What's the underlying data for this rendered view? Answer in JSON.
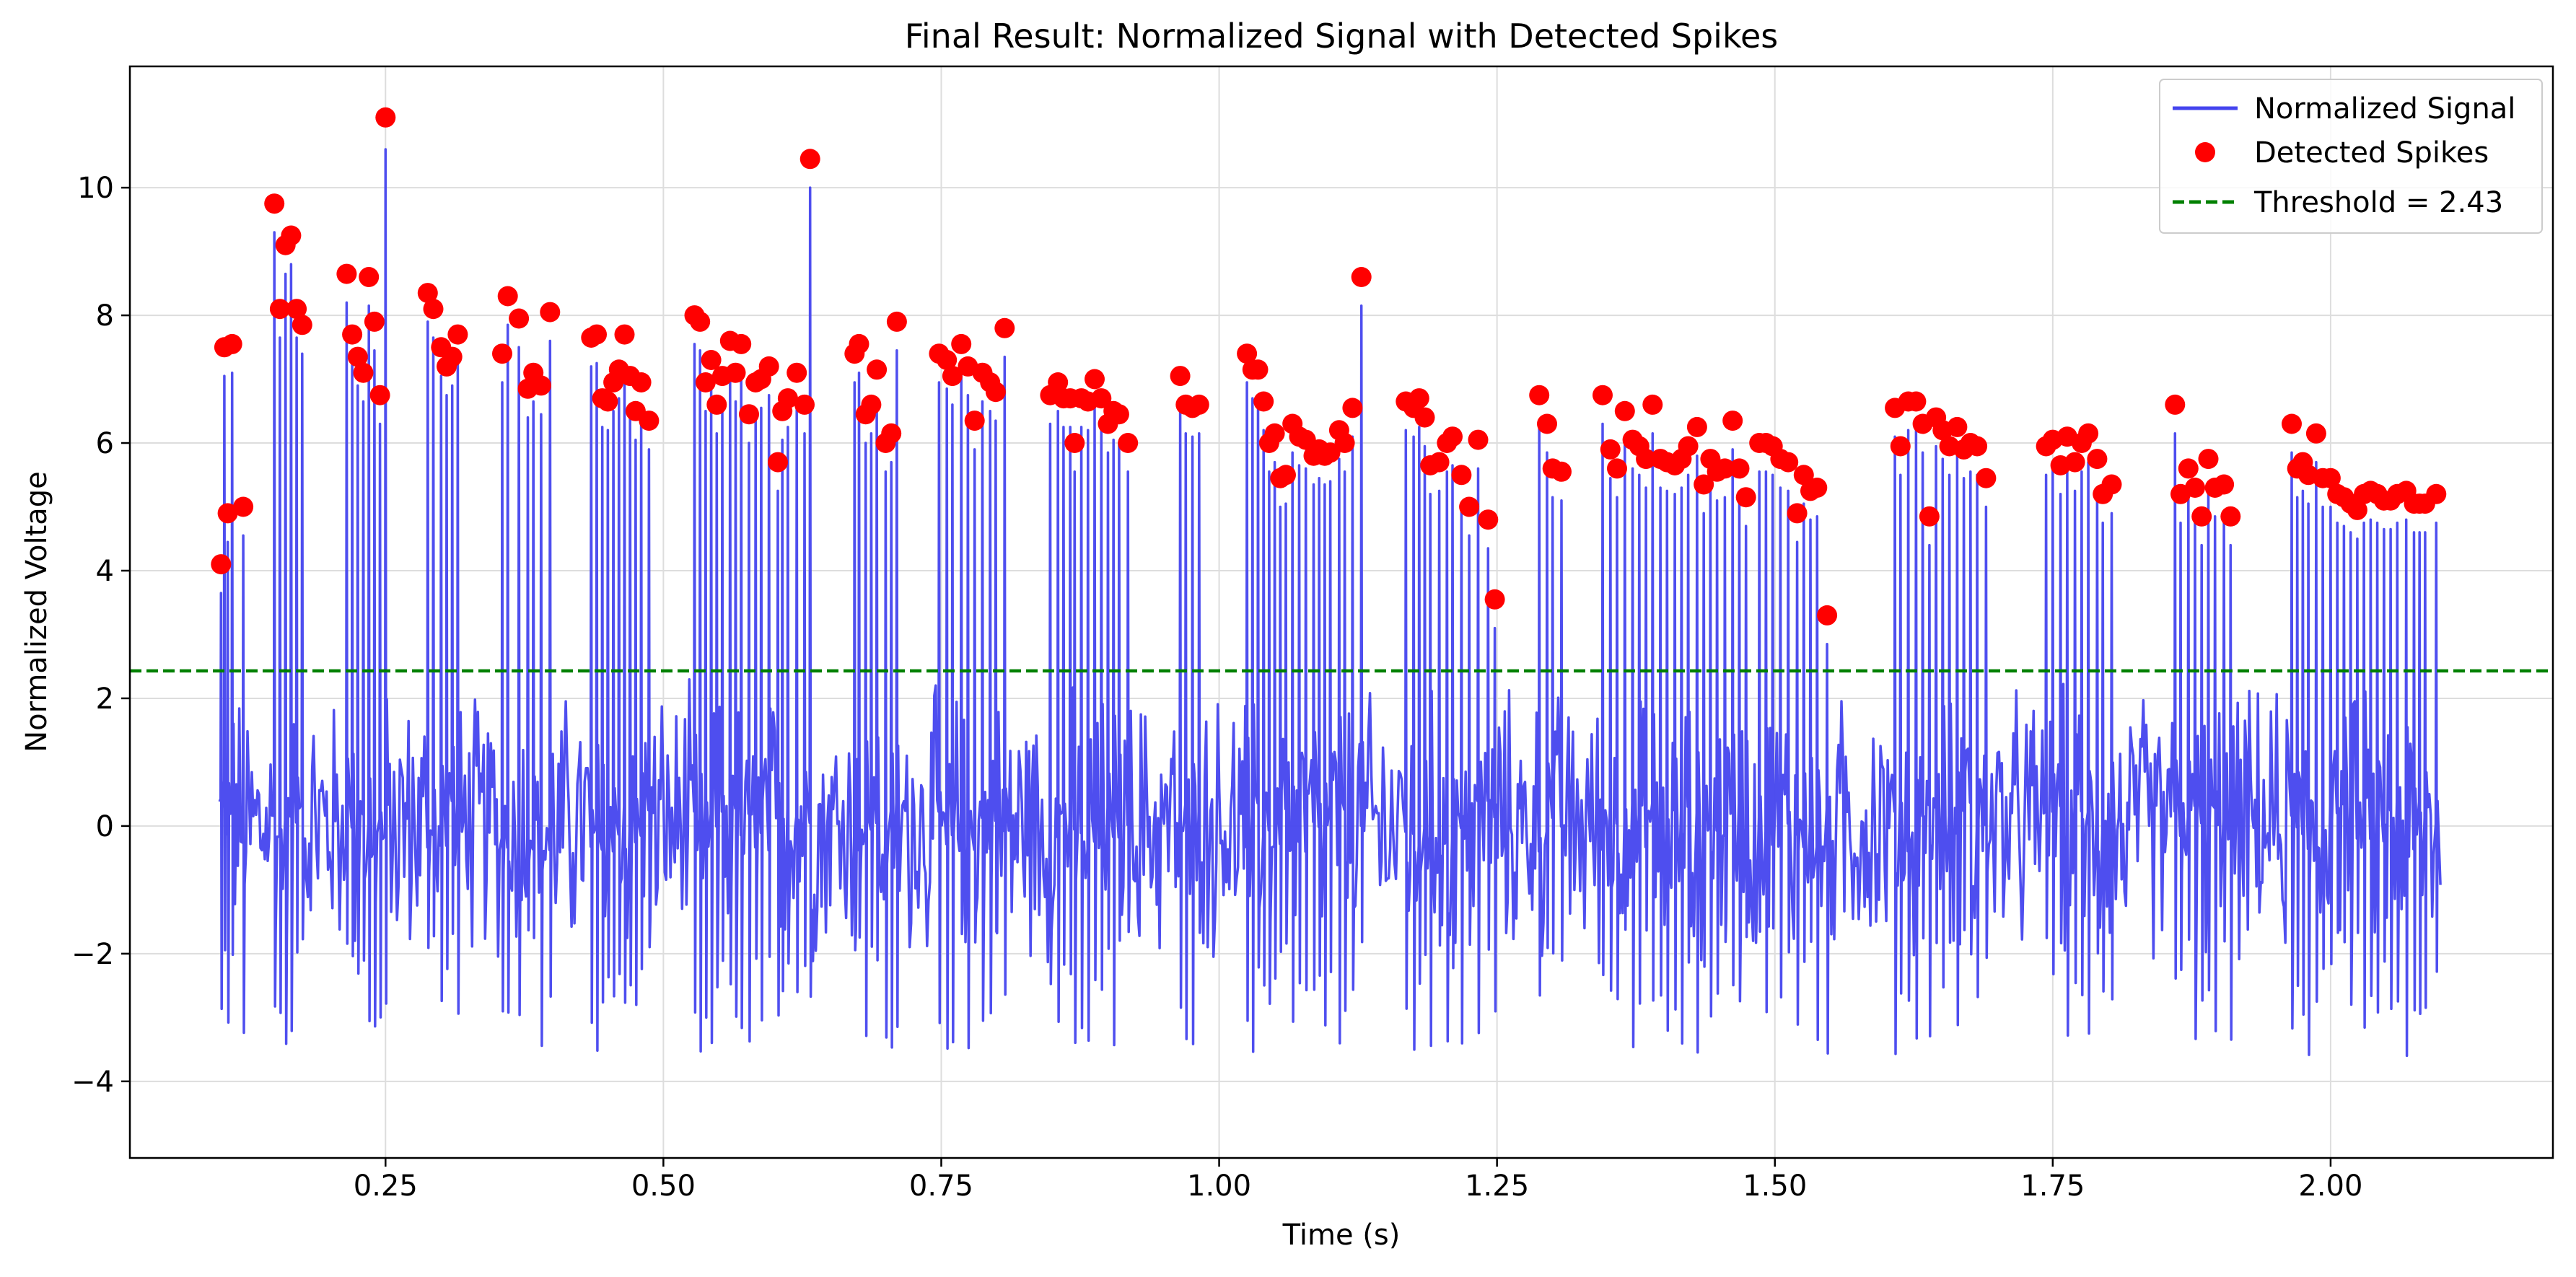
{
  "chart_data": {
    "type": "line",
    "title": "Final Result: Normalized Signal with Detected Spikes",
    "xlabel": "Time (s)",
    "ylabel": "Normalized Voltage",
    "xlim": [
      0.02,
      2.2
    ],
    "ylim": [
      -5.2,
      11.9
    ],
    "x_ticks": [
      0.25,
      0.5,
      0.75,
      1.0,
      1.25,
      1.5,
      1.75,
      2.0
    ],
    "x_tick_labels": [
      "0.25",
      "0.50",
      "0.75",
      "1.00",
      "1.25",
      "1.50",
      "1.75",
      "2.00"
    ],
    "y_ticks": [
      -4,
      -2,
      0,
      2,
      4,
      6,
      8,
      10
    ],
    "y_tick_labels": [
      "−4",
      "−2",
      "0",
      "2",
      "4",
      "6",
      "8",
      "10"
    ],
    "grid": true,
    "legend_position": "top-right",
    "colors": {
      "signal": "#4444ee",
      "spikes": "#ff0000",
      "threshold": "#008000"
    },
    "series": [
      {
        "name": "Normalized Signal",
        "kind": "line",
        "x_range": [
          0.1,
          2.1
        ],
        "signal_min": -4.4,
        "signal_max": 10.6
      },
      {
        "name": "Detected Spikes",
        "kind": "scatter",
        "points": [
          [
            0.102,
            4.1
          ],
          [
            0.105,
            7.5
          ],
          [
            0.108,
            4.9
          ],
          [
            0.112,
            7.55
          ],
          [
            0.122,
            5.0
          ],
          [
            0.15,
            9.75
          ],
          [
            0.155,
            8.1
          ],
          [
            0.16,
            9.1
          ],
          [
            0.165,
            9.25
          ],
          [
            0.17,
            8.1
          ],
          [
            0.175,
            7.85
          ],
          [
            0.215,
            8.65
          ],
          [
            0.22,
            7.7
          ],
          [
            0.225,
            7.35
          ],
          [
            0.23,
            7.1
          ],
          [
            0.235,
            8.6
          ],
          [
            0.24,
            7.9
          ],
          [
            0.245,
            6.75
          ],
          [
            0.25,
            11.1
          ],
          [
            0.288,
            8.35
          ],
          [
            0.293,
            8.1
          ],
          [
            0.3,
            7.5
          ],
          [
            0.305,
            7.2
          ],
          [
            0.31,
            7.35
          ],
          [
            0.315,
            7.7
          ],
          [
            0.355,
            7.4
          ],
          [
            0.36,
            8.3
          ],
          [
            0.37,
            7.95
          ],
          [
            0.378,
            6.85
          ],
          [
            0.383,
            7.1
          ],
          [
            0.39,
            6.9
          ],
          [
            0.398,
            8.05
          ],
          [
            0.435,
            7.65
          ],
          [
            0.44,
            7.7
          ],
          [
            0.445,
            6.7
          ],
          [
            0.45,
            6.65
          ],
          [
            0.455,
            6.95
          ],
          [
            0.46,
            7.15
          ],
          [
            0.465,
            7.7
          ],
          [
            0.47,
            7.05
          ],
          [
            0.475,
            6.5
          ],
          [
            0.48,
            6.95
          ],
          [
            0.487,
            6.35
          ],
          [
            0.528,
            8.0
          ],
          [
            0.533,
            7.9
          ],
          [
            0.538,
            6.95
          ],
          [
            0.543,
            7.3
          ],
          [
            0.548,
            6.6
          ],
          [
            0.553,
            7.05
          ],
          [
            0.56,
            7.6
          ],
          [
            0.565,
            7.1
          ],
          [
            0.57,
            7.55
          ],
          [
            0.577,
            6.45
          ],
          [
            0.583,
            6.95
          ],
          [
            0.588,
            7.0
          ],
          [
            0.595,
            7.2
          ],
          [
            0.603,
            5.7
          ],
          [
            0.607,
            6.5
          ],
          [
            0.612,
            6.7
          ],
          [
            0.62,
            7.1
          ],
          [
            0.627,
            6.6
          ],
          [
            0.632,
            10.45
          ],
          [
            0.672,
            7.4
          ],
          [
            0.676,
            7.55
          ],
          [
            0.682,
            6.45
          ],
          [
            0.687,
            6.6
          ],
          [
            0.692,
            7.15
          ],
          [
            0.7,
            6.0
          ],
          [
            0.705,
            6.15
          ],
          [
            0.71,
            7.9
          ],
          [
            0.748,
            7.4
          ],
          [
            0.755,
            7.3
          ],
          [
            0.76,
            7.05
          ],
          [
            0.768,
            7.55
          ],
          [
            0.774,
            7.2
          ],
          [
            0.78,
            6.35
          ],
          [
            0.787,
            7.1
          ],
          [
            0.794,
            6.95
          ],
          [
            0.799,
            6.8
          ],
          [
            0.807,
            7.8
          ],
          [
            0.848,
            6.75
          ],
          [
            0.855,
            6.95
          ],
          [
            0.86,
            6.7
          ],
          [
            0.866,
            6.7
          ],
          [
            0.87,
            6.0
          ],
          [
            0.876,
            6.7
          ],
          [
            0.882,
            6.65
          ],
          [
            0.888,
            7.0
          ],
          [
            0.894,
            6.7
          ],
          [
            0.9,
            6.3
          ],
          [
            0.905,
            6.5
          ],
          [
            0.91,
            6.45
          ],
          [
            0.918,
            6.0
          ],
          [
            0.965,
            7.05
          ],
          [
            0.97,
            6.6
          ],
          [
            0.976,
            6.55
          ],
          [
            0.982,
            6.6
          ],
          [
            1.025,
            7.4
          ],
          [
            1.03,
            7.15
          ],
          [
            1.035,
            7.15
          ],
          [
            1.04,
            6.65
          ],
          [
            1.045,
            6.0
          ],
          [
            1.05,
            6.15
          ],
          [
            1.055,
            5.45
          ],
          [
            1.06,
            5.5
          ],
          [
            1.066,
            6.3
          ],
          [
            1.072,
            6.1
          ],
          [
            1.078,
            6.05
          ],
          [
            1.085,
            5.8
          ],
          [
            1.09,
            5.9
          ],
          [
            1.095,
            5.8
          ],
          [
            1.1,
            5.85
          ],
          [
            1.108,
            6.2
          ],
          [
            1.113,
            6.0
          ],
          [
            1.12,
            6.55
          ],
          [
            1.128,
            8.6
          ],
          [
            1.168,
            6.65
          ],
          [
            1.175,
            6.55
          ],
          [
            1.18,
            6.7
          ],
          [
            1.185,
            6.4
          ],
          [
            1.19,
            5.65
          ],
          [
            1.198,
            5.7
          ],
          [
            1.205,
            6.0
          ],
          [
            1.21,
            6.1
          ],
          [
            1.218,
            5.5
          ],
          [
            1.225,
            5.0
          ],
          [
            1.233,
            6.05
          ],
          [
            1.242,
            4.8
          ],
          [
            1.248,
            3.55
          ],
          [
            1.288,
            6.75
          ],
          [
            1.295,
            6.3
          ],
          [
            1.3,
            5.6
          ],
          [
            1.308,
            5.55
          ],
          [
            1.345,
            6.75
          ],
          [
            1.352,
            5.9
          ],
          [
            1.358,
            5.6
          ],
          [
            1.365,
            6.5
          ],
          [
            1.372,
            6.05
          ],
          [
            1.378,
            5.95
          ],
          [
            1.384,
            5.75
          ],
          [
            1.39,
            6.6
          ],
          [
            1.397,
            5.75
          ],
          [
            1.403,
            5.7
          ],
          [
            1.41,
            5.65
          ],
          [
            1.416,
            5.75
          ],
          [
            1.422,
            5.95
          ],
          [
            1.43,
            6.25
          ],
          [
            1.436,
            5.35
          ],
          [
            1.442,
            5.75
          ],
          [
            1.448,
            5.55
          ],
          [
            1.455,
            5.6
          ],
          [
            1.462,
            6.35
          ],
          [
            1.468,
            5.6
          ],
          [
            1.474,
            5.15
          ],
          [
            1.486,
            6.0
          ],
          [
            1.492,
            6.0
          ],
          [
            1.498,
            5.95
          ],
          [
            1.505,
            5.75
          ],
          [
            1.512,
            5.7
          ],
          [
            1.52,
            4.9
          ],
          [
            1.526,
            5.5
          ],
          [
            1.532,
            5.25
          ],
          [
            1.538,
            5.3
          ],
          [
            1.547,
            3.3
          ],
          [
            1.608,
            6.55
          ],
          [
            1.613,
            5.95
          ],
          [
            1.62,
            6.65
          ],
          [
            1.627,
            6.65
          ],
          [
            1.633,
            6.3
          ],
          [
            1.639,
            4.85
          ],
          [
            1.645,
            6.4
          ],
          [
            1.651,
            6.2
          ],
          [
            1.657,
            5.95
          ],
          [
            1.664,
            6.25
          ],
          [
            1.67,
            5.9
          ],
          [
            1.676,
            6.0
          ],
          [
            1.682,
            5.95
          ],
          [
            1.69,
            5.45
          ],
          [
            1.744,
            5.95
          ],
          [
            1.75,
            6.05
          ],
          [
            1.757,
            5.65
          ],
          [
            1.763,
            6.1
          ],
          [
            1.77,
            5.7
          ],
          [
            1.776,
            6.0
          ],
          [
            1.782,
            6.15
          ],
          [
            1.79,
            5.75
          ],
          [
            1.795,
            5.2
          ],
          [
            1.803,
            5.35
          ],
          [
            1.86,
            6.6
          ],
          [
            1.865,
            5.2
          ],
          [
            1.872,
            5.6
          ],
          [
            1.878,
            5.3
          ],
          [
            1.884,
            4.85
          ],
          [
            1.89,
            5.75
          ],
          [
            1.896,
            5.3
          ],
          [
            1.904,
            5.35
          ],
          [
            1.91,
            4.85
          ],
          [
            1.965,
            6.3
          ],
          [
            1.97,
            5.6
          ],
          [
            1.975,
            5.7
          ],
          [
            1.98,
            5.5
          ],
          [
            1.987,
            6.15
          ],
          [
            1.993,
            5.45
          ],
          [
            2.0,
            5.45
          ],
          [
            2.006,
            5.2
          ],
          [
            2.012,
            5.15
          ],
          [
            2.018,
            5.05
          ],
          [
            2.024,
            4.95
          ],
          [
            2.03,
            5.2
          ],
          [
            2.036,
            5.25
          ],
          [
            2.042,
            5.2
          ],
          [
            2.048,
            5.1
          ],
          [
            2.054,
            5.1
          ],
          [
            2.06,
            5.2
          ],
          [
            2.068,
            5.25
          ],
          [
            2.075,
            5.05
          ],
          [
            2.08,
            5.05
          ],
          [
            2.085,
            5.05
          ],
          [
            2.095,
            5.2
          ]
        ]
      },
      {
        "name": "Threshold = 2.43",
        "kind": "hline",
        "y": 2.43,
        "style": "dashed"
      }
    ]
  }
}
